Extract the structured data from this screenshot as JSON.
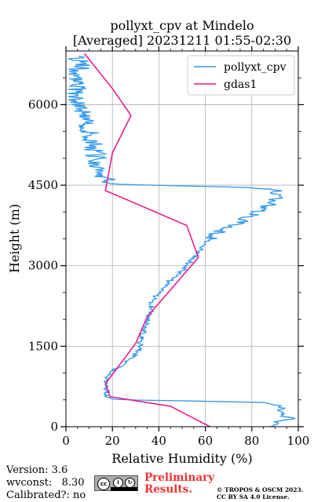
{
  "chart_data": {
    "type": "line",
    "title_line1": "pollyxt_cpv at Mindelo",
    "title_line2": "[Averaged] 20231211 01:55-02:30",
    "xlabel": "Relative Humidity (%)",
    "ylabel": "Height (m)",
    "xlim": [
      0,
      100
    ],
    "ylim": [
      0,
      7000
    ],
    "xticks": [
      0,
      20,
      40,
      60,
      80,
      100
    ],
    "yticks": [
      0,
      1500,
      3000,
      4500,
      6000
    ],
    "grid": true,
    "legend_position": "top-right",
    "series": [
      {
        "name": "pollyxt_cpv",
        "color": "#3399ee",
        "profile": [
          [
            0,
            88
          ],
          [
            50,
            92
          ],
          [
            100,
            90
          ],
          [
            150,
            99
          ],
          [
            200,
            93
          ],
          [
            250,
            94
          ],
          [
            300,
            92
          ],
          [
            350,
            93
          ],
          [
            400,
            91
          ],
          [
            450,
            85
          ],
          [
            480,
            55
          ],
          [
            500,
            22
          ],
          [
            550,
            18
          ],
          [
            600,
            17
          ],
          [
            650,
            18
          ],
          [
            700,
            17
          ],
          [
            800,
            18
          ],
          [
            900,
            17
          ],
          [
            1000,
            19
          ],
          [
            1100,
            22
          ],
          [
            1200,
            26
          ],
          [
            1300,
            29
          ],
          [
            1400,
            31
          ],
          [
            1500,
            32
          ],
          [
            1600,
            32
          ],
          [
            1700,
            33
          ],
          [
            1800,
            34
          ],
          [
            1900,
            35
          ],
          [
            2000,
            36
          ],
          [
            2100,
            36
          ],
          [
            2200,
            37
          ],
          [
            2300,
            37
          ],
          [
            2400,
            38
          ],
          [
            2500,
            40
          ],
          [
            2600,
            42
          ],
          [
            2700,
            44
          ],
          [
            2800,
            47
          ],
          [
            2900,
            50
          ],
          [
            3000,
            52
          ],
          [
            3100,
            54
          ],
          [
            3200,
            56
          ],
          [
            3300,
            58
          ],
          [
            3400,
            60
          ],
          [
            3500,
            62
          ],
          [
            3600,
            65
          ],
          [
            3700,
            69
          ],
          [
            3800,
            74
          ],
          [
            3900,
            78
          ],
          [
            4000,
            82
          ],
          [
            4100,
            86
          ],
          [
            4200,
            89
          ],
          [
            4300,
            92
          ],
          [
            4400,
            90
          ],
          [
            4450,
            80
          ],
          [
            4480,
            60
          ],
          [
            4500,
            35
          ],
          [
            4520,
            22
          ],
          [
            4600,
            17
          ],
          [
            4800,
            15
          ],
          [
            5000,
            13
          ],
          [
            5200,
            12
          ],
          [
            5400,
            11
          ],
          [
            5600,
            9
          ],
          [
            5800,
            8
          ],
          [
            6000,
            6
          ],
          [
            6200,
            5
          ],
          [
            6400,
            4
          ],
          [
            6600,
            5
          ],
          [
            6800,
            7
          ],
          [
            6900,
            4
          ]
        ]
      },
      {
        "name": "gdas1",
        "color": "#ee1188",
        "profile": [
          [
            0,
            62
          ],
          [
            380,
            45
          ],
          [
            560,
            19
          ],
          [
            800,
            17
          ],
          [
            1550,
            30
          ],
          [
            2050,
            35
          ],
          [
            3150,
            57
          ],
          [
            3750,
            52
          ],
          [
            4400,
            17
          ],
          [
            5100,
            20
          ],
          [
            5800,
            28
          ],
          [
            6300,
            20
          ],
          [
            6950,
            8
          ]
        ]
      }
    ]
  },
  "footer": {
    "version": "Version: 3.6",
    "wvconst": "wvconst:   8.30",
    "calibrated": "Calibrated?: no",
    "preliminary_line1": "Preliminary",
    "preliminary_line2": "Results.",
    "copyright_line1": "© TROPOS & OSCM 2023.",
    "copyright_line2": "CC BY SA 4.0 License.",
    "cc_icon": "cc-by-sa-icon"
  }
}
